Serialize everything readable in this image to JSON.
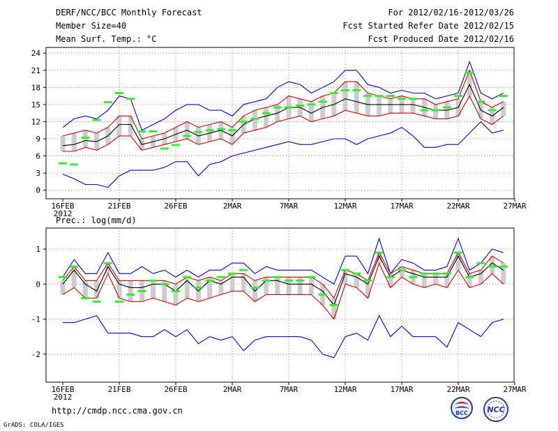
{
  "header": {
    "title": "DERF/NCC/BCC Monthly Forecast",
    "member_size": "Member Size=40",
    "panel1_label": "Mean Surf. Temp.: °C",
    "period": "For 2012/02/16-2012/03/26",
    "started": "Fcst Started Refer Date 2012/02/15",
    "produced": "Fcst Produced Date 2012/02/16"
  },
  "panel2_label": "Prec.: log(mm/d)",
  "footer": {
    "url": "http://cmdp.ncc.cma.gov.cn",
    "credit": "GrADS: COLA/IGES"
  },
  "logos": {
    "bcc": "BCC",
    "ncc": "NCC"
  },
  "colors": {
    "max_min": "#0000cc",
    "spread": "#cc0000",
    "mean": "#000000",
    "obs": "#33ee33",
    "box": "#cccccc",
    "grid": "#666666"
  },
  "chart_data": [
    {
      "type": "line",
      "title": "Mean Surf. Temp.: °C",
      "x_dates": [
        "16FEB",
        "17FEB",
        "18FEB",
        "19FEB",
        "20FEB",
        "21FEB",
        "22FEB",
        "23FEB",
        "24FEB",
        "25FEB",
        "26FEB",
        "27FEB",
        "28FEB",
        "29FEB",
        "1MAR",
        "2MAR",
        "3MAR",
        "4MAR",
        "5MAR",
        "6MAR",
        "7MAR",
        "8MAR",
        "9MAR",
        "10MAR",
        "11MAR",
        "12MAR",
        "13MAR",
        "14MAR",
        "15MAR",
        "16MAR",
        "17MAR",
        "18MAR",
        "19MAR",
        "20MAR",
        "21MAR",
        "22MAR",
        "23MAR",
        "24MAR",
        "25MAR",
        "26MAR"
      ],
      "x_ticks": [
        {
          "label": "16FEB",
          "sub": "2012",
          "index": 0
        },
        {
          "label": "21FEB",
          "index": 5
        },
        {
          "label": "26FEB",
          "index": 10
        },
        {
          "label": "2MAR",
          "index": 15
        },
        {
          "label": "7MAR",
          "index": 20
        },
        {
          "label": "12MAR",
          "index": 25
        },
        {
          "label": "17MAR",
          "index": 30
        },
        {
          "label": "22MAR",
          "index": 35
        },
        {
          "label": "27MAR",
          "index": 40
        }
      ],
      "y_ticks": [
        "0",
        "3",
        "6",
        "9",
        "12",
        "15",
        "18",
        "21",
        "24"
      ],
      "ylim": [
        -1.5,
        25
      ],
      "series": [
        {
          "name": "max",
          "style": "max_min",
          "values": [
            11,
            12.5,
            13,
            12.5,
            14,
            16.5,
            16,
            10.5,
            11.5,
            12.5,
            14,
            15,
            15,
            14,
            14,
            13,
            15,
            15.5,
            16,
            18,
            19,
            18.5,
            17,
            18,
            19,
            21,
            21,
            18.5,
            18,
            17,
            17.5,
            17,
            17,
            16,
            16.5,
            17,
            22.5,
            17,
            16,
            17
          ]
        },
        {
          "name": "upper",
          "style": "spread",
          "values": [
            9.5,
            10,
            10.5,
            10,
            11,
            13,
            13,
            9,
            9.5,
            10,
            11,
            12,
            11,
            11.5,
            12,
            11,
            13,
            14,
            14.5,
            15,
            16.5,
            16,
            15.5,
            16.5,
            17,
            19,
            19,
            17,
            16.5,
            16,
            16.5,
            16,
            16,
            15,
            15.5,
            16,
            21,
            15.5,
            14.5,
            15.5
          ]
        },
        {
          "name": "mean",
          "style": "mean",
          "values": [
            7.8,
            8,
            8.7,
            8.5,
            9.5,
            11.5,
            11.5,
            8,
            8.5,
            9,
            9.8,
            10.5,
            9.5,
            10,
            10.5,
            9.5,
            11.5,
            12.5,
            13,
            13.5,
            14.5,
            14.5,
            13.5,
            14.5,
            15,
            16,
            15.5,
            15,
            15,
            15,
            15,
            15,
            14.5,
            14,
            14,
            14.5,
            18.5,
            14,
            13,
            14.5
          ]
        },
        {
          "name": "lower",
          "style": "spread",
          "values": [
            6.8,
            6.8,
            7.5,
            7,
            8,
            9.5,
            9.5,
            7,
            7.5,
            8,
            8.5,
            9,
            8,
            8.5,
            9,
            8,
            10,
            10.5,
            11,
            12,
            12.5,
            13,
            12,
            12.5,
            13,
            14,
            13.5,
            13,
            13,
            13.5,
            13.5,
            13.5,
            13,
            12.5,
            12.5,
            13,
            16.5,
            12.5,
            11.5,
            13
          ]
        },
        {
          "name": "min",
          "style": "max_min",
          "values": [
            2.8,
            2,
            1,
            1,
            0.5,
            2.5,
            3.5,
            3.5,
            3.5,
            4,
            5,
            5,
            2.5,
            4.5,
            5,
            6,
            6.5,
            7,
            7.5,
            8,
            8.5,
            8,
            8,
            8.5,
            9,
            9,
            8,
            9,
            9.5,
            10,
            11,
            9.5,
            7.5,
            7.5,
            8,
            8,
            10,
            12,
            10,
            10.5
          ]
        },
        {
          "name": "observed",
          "style": "obs",
          "values": [
            4.7,
            4.5,
            9.2,
            12.3,
            15.4,
            17,
            16,
            10.3,
            10.3,
            7.3,
            7.9,
            9.5,
            10.2,
            10.5,
            10.7,
            10.5,
            12,
            12.5,
            13.5,
            14.5,
            14.5,
            14.8,
            15,
            15.5,
            17,
            17.5,
            17.5,
            16.5,
            16.5,
            16.5,
            16,
            16,
            14,
            14,
            14.5,
            16.5,
            20.5,
            15.5,
            14,
            16.5
          ]
        }
      ]
    },
    {
      "type": "line",
      "title": "Prec.: log(mm/d)",
      "x_dates": [
        "16FEB",
        "17FEB",
        "18FEB",
        "19FEB",
        "20FEB",
        "21FEB",
        "22FEB",
        "23FEB",
        "24FEB",
        "25FEB",
        "26FEB",
        "27FEB",
        "28FEB",
        "29FEB",
        "1MAR",
        "2MAR",
        "3MAR",
        "4MAR",
        "5MAR",
        "6MAR",
        "7MAR",
        "8MAR",
        "9MAR",
        "10MAR",
        "11MAR",
        "12MAR",
        "13MAR",
        "14MAR",
        "15MAR",
        "16MAR",
        "17MAR",
        "18MAR",
        "19MAR",
        "20MAR",
        "21MAR",
        "22MAR",
        "23MAR",
        "24MAR",
        "25MAR",
        "26MAR"
      ],
      "x_ticks": [
        {
          "label": "16FEB",
          "sub": "2012",
          "index": 0
        },
        {
          "label": "21FEB",
          "index": 5
        },
        {
          "label": "26FEB",
          "index": 10
        },
        {
          "label": "2MAR",
          "index": 15
        },
        {
          "label": "7MAR",
          "index": 20
        },
        {
          "label": "12MAR",
          "index": 25
        },
        {
          "label": "17MAR",
          "index": 30
        },
        {
          "label": "22MAR",
          "index": 35
        },
        {
          "label": "27MAR",
          "index": 40
        }
      ],
      "y_ticks": [
        "-2",
        "-1",
        "0",
        "1"
      ],
      "ylim": [
        -2.8,
        1.6
      ],
      "series": [
        {
          "name": "max",
          "style": "max_min",
          "values": [
            0.2,
            0.7,
            0.3,
            0.3,
            0.9,
            0.3,
            0.3,
            0.5,
            0.3,
            0.4,
            0.2,
            0.4,
            0.2,
            0.4,
            0.4,
            0.6,
            0.6,
            0.3,
            0.5,
            0.4,
            0.4,
            0.4,
            0.4,
            0.2,
            0,
            0.8,
            0.8,
            0.3,
            1.3,
            0.3,
            0.7,
            0.6,
            0.4,
            0.4,
            0.5,
            1.3,
            0.4,
            0.6,
            1,
            0.9
          ]
        },
        {
          "name": "upper",
          "style": "spread",
          "values": [
            0.1,
            0.5,
            0.1,
            0.1,
            0.6,
            0.1,
            0.1,
            0.1,
            0.1,
            0.1,
            0,
            0.2,
            0.1,
            0.2,
            0.1,
            0.3,
            0.3,
            0.1,
            0.2,
            0.2,
            0.2,
            0.2,
            0.2,
            0,
            -0.4,
            0.4,
            0.3,
            0.1,
            0.9,
            0.3,
            0.5,
            0.4,
            0.3,
            0.3,
            0.3,
            0.9,
            0.3,
            0.4,
            0.8,
            0.6
          ]
        },
        {
          "name": "mean",
          "style": "mean",
          "values": [
            0,
            0.4,
            0,
            -0.2,
            0.5,
            0,
            -0.1,
            -0.1,
            0,
            0,
            -0.2,
            0.1,
            -0.2,
            0.1,
            0,
            0.2,
            0.2,
            -0.2,
            0.1,
            0.1,
            0,
            0,
            0,
            -0.2,
            -0.6,
            0.3,
            0.2,
            0,
            0.8,
            0.2,
            0.4,
            0.3,
            0.2,
            0.2,
            0.2,
            0.8,
            0.2,
            0.3,
            0.6,
            0.4
          ]
        },
        {
          "name": "lower",
          "style": "spread",
          "values": [
            -0.3,
            -0.1,
            -0.4,
            -0.4,
            0.3,
            -0.4,
            -0.5,
            -0.5,
            -0.4,
            -0.5,
            -0.6,
            -0.4,
            -0.5,
            -0.4,
            -0.3,
            -0.2,
            -0.2,
            -0.5,
            -0.3,
            -0.3,
            -0.3,
            -0.3,
            -0.3,
            -0.6,
            -1,
            0,
            -0.1,
            -0.4,
            0.6,
            -0.1,
            0.2,
            0,
            -0.1,
            0,
            -0.1,
            0.4,
            -0.1,
            0,
            0.3,
            0
          ]
        },
        {
          "name": "min",
          "style": "max_min",
          "values": [
            -1.1,
            -1.1,
            -1,
            -0.9,
            -1.4,
            -1.4,
            -1.4,
            -1.5,
            -1.5,
            -1.3,
            -1.5,
            -1.3,
            -1.7,
            -1.5,
            -1.6,
            -1.5,
            -1.9,
            -1.6,
            -1.5,
            -1.5,
            -1.5,
            -1.5,
            -1.6,
            -2,
            -2.1,
            -1.5,
            -1.4,
            -1.6,
            -0.9,
            -1.5,
            -1.2,
            -1.5,
            -1.5,
            -1.5,
            -1.8,
            -1.1,
            -1.3,
            -1.5,
            -1.1,
            -1
          ]
        },
        {
          "name": "observed",
          "style": "obs",
          "values": [
            0.2,
            0.5,
            -0.4,
            -0.5,
            0.6,
            -0.5,
            -0.3,
            -0.2,
            0.1,
            0,
            -0.2,
            0.2,
            -0.1,
            0.1,
            0.2,
            0.3,
            0.4,
            -0.1,
            0.1,
            0.2,
            0.1,
            0.1,
            0.2,
            -0.3,
            -0.6,
            0.4,
            0.3,
            0.1,
            0.9,
            0.2,
            0.4,
            0.2,
            0.3,
            0.3,
            0.3,
            0.9,
            0.2,
            0.6,
            0.5,
            0.5
          ]
        }
      ]
    }
  ]
}
